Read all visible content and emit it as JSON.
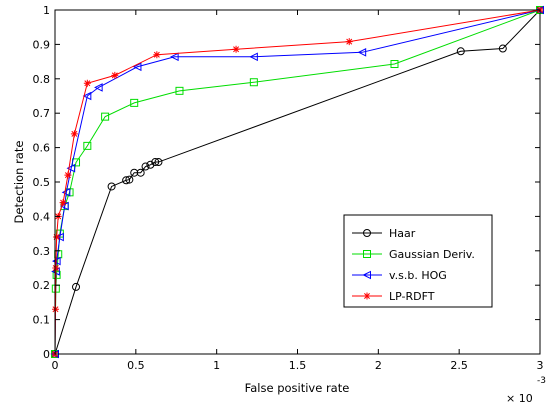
{
  "chart_data": {
    "type": "line",
    "title": "",
    "xlabel": "False positive rate",
    "ylabel": "Detection rate",
    "x_multiplier": {
      "base": "× 10",
      "exponent": "-3"
    },
    "xlim": [
      0,
      3
    ],
    "ylim": [
      0,
      1
    ],
    "x_ticks": [
      {
        "value": 0,
        "label": "0"
      },
      {
        "value": 0.5,
        "label": "0.5"
      },
      {
        "value": 1,
        "label": "1"
      },
      {
        "value": 1.5,
        "label": "1.5"
      },
      {
        "value": 2,
        "label": "2"
      },
      {
        "value": 2.5,
        "label": "2.5"
      },
      {
        "value": 3,
        "label": "3"
      }
    ],
    "y_ticks": [
      {
        "value": 0,
        "label": "0"
      },
      {
        "value": 0.1,
        "label": "0.1"
      },
      {
        "value": 0.2,
        "label": "0.2"
      },
      {
        "value": 0.3,
        "label": "0.3"
      },
      {
        "value": 0.4,
        "label": "0.4"
      },
      {
        "value": 0.5,
        "label": "0.5"
      },
      {
        "value": 0.6,
        "label": "0.6"
      },
      {
        "value": 0.7,
        "label": "0.7"
      },
      {
        "value": 0.8,
        "label": "0.8"
      },
      {
        "value": 0.9,
        "label": "0.9"
      },
      {
        "value": 1,
        "label": "1"
      }
    ],
    "grid": false,
    "legend_position": "lower-right",
    "series": [
      {
        "name": "Haar",
        "color": "#000000",
        "marker": "circle",
        "points": [
          [
            0,
            0
          ],
          [
            0.13,
            0.195
          ],
          [
            0.35,
            0.487
          ],
          [
            0.44,
            0.505
          ],
          [
            0.46,
            0.507
          ],
          [
            0.49,
            0.527
          ],
          [
            0.53,
            0.527
          ],
          [
            0.56,
            0.545
          ],
          [
            0.59,
            0.55
          ],
          [
            0.62,
            0.558
          ],
          [
            0.64,
            0.558
          ],
          [
            2.51,
            0.88
          ],
          [
            2.77,
            0.888
          ],
          [
            3.0,
            1.0
          ]
        ]
      },
      {
        "name": "Gaussian Deriv.",
        "color": "#00dd00",
        "marker": "square",
        "points": [
          [
            0,
            0
          ],
          [
            0.005,
            0.19
          ],
          [
            0.01,
            0.23
          ],
          [
            0.02,
            0.29
          ],
          [
            0.03,
            0.35
          ],
          [
            0.06,
            0.43
          ],
          [
            0.09,
            0.47
          ],
          [
            0.13,
            0.557
          ],
          [
            0.2,
            0.605
          ],
          [
            0.31,
            0.69
          ],
          [
            0.49,
            0.73
          ],
          [
            0.77,
            0.765
          ],
          [
            1.23,
            0.79
          ],
          [
            2.1,
            0.843
          ],
          [
            3.0,
            1.0
          ]
        ]
      },
      {
        "name": "v.s.b. HOG",
        "color": "#0000ff",
        "marker": "triangle-left",
        "points": [
          [
            0,
            0
          ],
          [
            0.005,
            0.24
          ],
          [
            0.01,
            0.27
          ],
          [
            0.03,
            0.34
          ],
          [
            0.06,
            0.43
          ],
          [
            0.07,
            0.47
          ],
          [
            0.1,
            0.54
          ],
          [
            0.2,
            0.75
          ],
          [
            0.27,
            0.775
          ],
          [
            0.51,
            0.835
          ],
          [
            0.74,
            0.864
          ],
          [
            1.23,
            0.864
          ],
          [
            1.9,
            0.877
          ],
          [
            3.0,
            1.0
          ]
        ]
      },
      {
        "name": "LP-RDFT",
        "color": "#ff0000",
        "marker": "star",
        "points": [
          [
            0,
            0
          ],
          [
            0.003,
            0.13
          ],
          [
            0.005,
            0.25
          ],
          [
            0.01,
            0.34
          ],
          [
            0.02,
            0.4
          ],
          [
            0.05,
            0.44
          ],
          [
            0.08,
            0.52
          ],
          [
            0.12,
            0.64
          ],
          [
            0.2,
            0.787
          ],
          [
            0.37,
            0.81
          ],
          [
            0.63,
            0.87
          ],
          [
            1.12,
            0.886
          ],
          [
            1.82,
            0.908
          ],
          [
            3.0,
            1.0
          ]
        ]
      }
    ]
  }
}
